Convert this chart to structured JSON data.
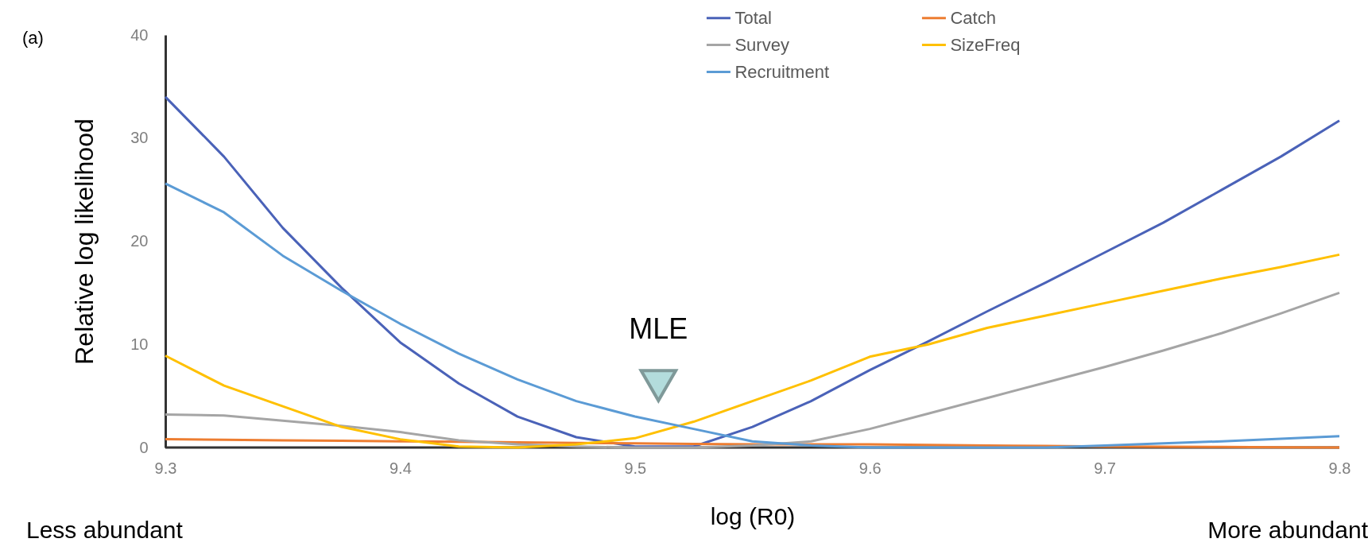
{
  "chart_data": {
    "type": "line",
    "xlabel": "log (R0)",
    "ylabel": "Relative log likelihood",
    "x": [
      9.3,
      9.325,
      9.35,
      9.375,
      9.4,
      9.425,
      9.45,
      9.475,
      9.5,
      9.525,
      9.55,
      9.575,
      9.6,
      9.625,
      9.65,
      9.675,
      9.7,
      9.725,
      9.75,
      9.775,
      9.8
    ],
    "series": [
      {
        "name": "Total",
        "color": "#4a62b8",
        "values": [
          34,
          28.2,
          21.3,
          15.5,
          10.2,
          6.2,
          3.0,
          1.0,
          0.1,
          0.1,
          2.0,
          4.5,
          7.5,
          10.3,
          13.2,
          16,
          18.9,
          21.8,
          25,
          28.2,
          31.7
        ]
      },
      {
        "name": "Catch",
        "color": "#ed7d31",
        "values": [
          0.8,
          0.75,
          0.7,
          0.65,
          0.6,
          0.55,
          0.5,
          0.45,
          0.4,
          0.35,
          0.3,
          0.3,
          0.3,
          0.25,
          0.2,
          0.15,
          0.1,
          0.08,
          0.05,
          0.02,
          0
        ]
      },
      {
        "name": "Survey",
        "color": "#a5a5a5",
        "values": [
          3.2,
          3.1,
          2.6,
          2.1,
          1.5,
          0.7,
          0.3,
          0.1,
          0,
          0,
          0.2,
          0.6,
          1.8,
          3.3,
          4.8,
          6.3,
          7.8,
          9.4,
          11.1,
          13,
          15
        ]
      },
      {
        "name": "SizeFreq",
        "color": "#ffc000",
        "values": [
          8.9,
          6.0,
          4.0,
          2.0,
          0.8,
          0.1,
          0,
          0.3,
          0.9,
          2.5,
          4.5,
          6.5,
          8.8,
          10,
          11.6,
          12.8,
          14,
          15.2,
          16.4,
          17.5,
          18.7
        ]
      },
      {
        "name": "Recruitment",
        "color": "#5b9bd5",
        "values": [
          25.6,
          22.8,
          18.6,
          15.2,
          12.0,
          9.1,
          6.6,
          4.5,
          3.0,
          1.8,
          0.6,
          0.2,
          0,
          0,
          0,
          0,
          0.2,
          0.4,
          0.6,
          0.85,
          1.1
        ]
      }
    ],
    "xlim": [
      9.3,
      9.8
    ],
    "xticks": [
      9.3,
      9.4,
      9.5,
      9.6,
      9.7,
      9.8
    ],
    "ylim": [
      0,
      40
    ],
    "yticks": [
      0,
      10,
      20,
      30,
      40
    ],
    "grid": false,
    "legend": "top right",
    "marker": "none",
    "line_style": "solid",
    "annotations": [
      "(a)",
      "Less abundant",
      "More abundant",
      {
        "text": "MLE",
        "x": 9.51,
        "y": 6
      }
    ]
  }
}
